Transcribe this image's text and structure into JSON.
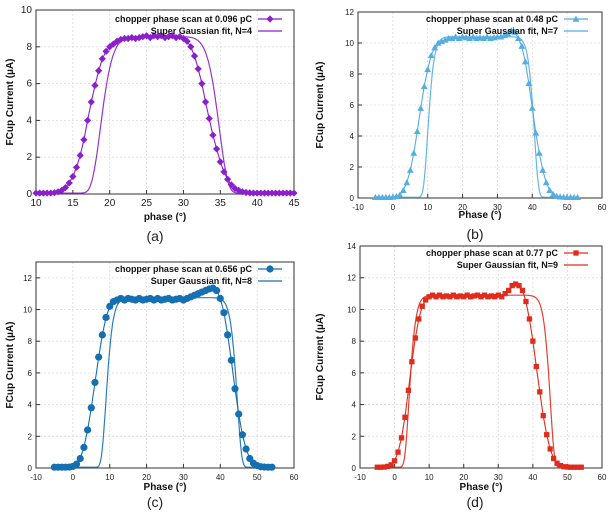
{
  "chart_data": [
    {
      "type": "scatter",
      "panel_label": "(a)",
      "color": "#8B1FCB",
      "marker": "diamond",
      "xlabel": "phase (°)",
      "ylabel": "FCup Current (µA)",
      "xlim": [
        10,
        45
      ],
      "ylim": [
        0,
        10
      ],
      "xticks": [
        10,
        15,
        20,
        25,
        30,
        35,
        40,
        45
      ],
      "yticks": [
        0,
        2,
        4,
        6,
        8,
        10
      ],
      "grid": true,
      "legend_position": "top-right",
      "series": [
        {
          "name": "chopper phase scan at 0.096 pC",
          "style": "markers",
          "x": [
            10,
            10.5,
            11,
            11.5,
            12,
            12.5,
            13,
            13.5,
            14,
            14.5,
            15,
            15.5,
            16,
            16.5,
            17,
            17.5,
            18,
            18.5,
            19,
            19.5,
            20,
            20.5,
            21,
            21.5,
            22,
            22.5,
            23,
            23.5,
            24,
            24.5,
            25,
            25.5,
            26,
            26.5,
            27,
            27.5,
            28,
            28.5,
            29,
            29.5,
            30,
            30.5,
            31,
            31.5,
            32,
            32.5,
            33,
            33.5,
            34,
            34.5,
            35,
            35.5,
            36,
            36.5,
            37,
            37.5,
            38,
            38.5,
            39,
            39.5,
            40,
            40.5,
            41,
            41.5,
            42,
            42.5,
            43,
            43.5,
            44,
            44.5,
            45
          ],
          "y": [
            0.05,
            0.05,
            0.05,
            0.05,
            0.05,
            0.07,
            0.12,
            0.2,
            0.35,
            0.6,
            0.95,
            1.45,
            2.1,
            2.95,
            4.0,
            5.0,
            5.9,
            6.7,
            7.35,
            7.75,
            8.0,
            8.15,
            8.3,
            8.4,
            8.45,
            8.45,
            8.5,
            8.45,
            8.5,
            8.55,
            8.6,
            8.5,
            8.6,
            8.55,
            8.6,
            8.5,
            8.55,
            8.6,
            8.5,
            8.55,
            8.45,
            8.3,
            8.0,
            7.5,
            6.8,
            6.0,
            5.0,
            4.1,
            3.2,
            2.45,
            1.75,
            1.2,
            0.8,
            0.5,
            0.3,
            0.2,
            0.12,
            0.08,
            0.06,
            0.05,
            0.05,
            0.05,
            0.05,
            0.05,
            0.05,
            0.05,
            0.05,
            0.05,
            0.05,
            0.05,
            0.05
          ]
        },
        {
          "name": "Super Gaussian fit, N=4",
          "style": "line",
          "fit": {
            "amplitude": 8.5,
            "center": 26.8,
            "width": 8.2,
            "order": 4,
            "baseline": 0.05
          }
        }
      ]
    },
    {
      "type": "scatter",
      "panel_label": "(b)",
      "color": "#55AEE2",
      "marker": "triangle",
      "xlabel": "Phase (°)",
      "ylabel": "FCup Current (µA)",
      "xlim": [
        -10,
        60
      ],
      "ylim": [
        0,
        12
      ],
      "xticks": [
        -10,
        0,
        10,
        20,
        30,
        40,
        50,
        60
      ],
      "yticks": [
        0,
        2,
        4,
        6,
        8,
        10,
        12
      ],
      "grid": true,
      "legend_position": "top-right",
      "series": [
        {
          "name": "chopper phase scan at 0.48 pC",
          "style": "markers",
          "x": [
            -5,
            -4,
            -3,
            -2,
            -1,
            0,
            1,
            2,
            3,
            4,
            5,
            6,
            7,
            8,
            9,
            10,
            11,
            12,
            13,
            14,
            15,
            16,
            17,
            18,
            19,
            20,
            21,
            22,
            23,
            24,
            25,
            26,
            27,
            28,
            29,
            30,
            31,
            32,
            33,
            34,
            35,
            36,
            37,
            38,
            39,
            40,
            41,
            42,
            43,
            44,
            45,
            46,
            47,
            48,
            49,
            50,
            51,
            52,
            53
          ],
          "y": [
            0.05,
            0.05,
            0.05,
            0.05,
            0.05,
            0.06,
            0.1,
            0.2,
            0.5,
            1.0,
            1.8,
            2.9,
            4.3,
            5.8,
            7.2,
            8.3,
            9.2,
            9.7,
            10.0,
            10.1,
            10.2,
            10.3,
            10.3,
            10.4,
            10.3,
            10.4,
            10.35,
            10.3,
            10.4,
            10.3,
            10.35,
            10.3,
            10.4,
            10.3,
            10.35,
            10.4,
            10.4,
            10.5,
            10.6,
            10.8,
            10.7,
            10.3,
            9.8,
            8.8,
            7.4,
            5.8,
            4.2,
            2.9,
            1.8,
            1.0,
            0.5,
            0.25,
            0.12,
            0.08,
            0.06,
            0.05,
            0.05,
            0.05,
            0.05
          ]
        },
        {
          "name": "Super Gaussian fit, N=7",
          "style": "line",
          "fit": {
            "amplitude": 10.35,
            "center": 25.3,
            "width": 15.4,
            "order": 7,
            "baseline": 0.05
          }
        }
      ]
    },
    {
      "type": "scatter",
      "panel_label": "(c)",
      "color": "#1470B2",
      "marker": "circle",
      "xlabel": "Phase (°)",
      "ylabel": "FCup Current (µA)",
      "xlim": [
        -10,
        60
      ],
      "ylim": [
        0,
        13
      ],
      "xticks": [
        -10,
        0,
        10,
        20,
        30,
        40,
        50,
        60
      ],
      "yticks": [
        0,
        2,
        4,
        6,
        8,
        10,
        12
      ],
      "grid": true,
      "legend_position": "top-right",
      "series": [
        {
          "name": "chopper phase scan at 0.656 pC",
          "style": "markers",
          "x": [
            -5,
            -4,
            -3,
            -2,
            -1,
            0,
            1,
            2,
            3,
            4,
            5,
            6,
            7,
            8,
            9,
            10,
            11,
            12,
            13,
            14,
            15,
            16,
            17,
            18,
            19,
            20,
            21,
            22,
            23,
            24,
            25,
            26,
            27,
            28,
            29,
            30,
            31,
            32,
            33,
            34,
            35,
            36,
            37,
            38,
            39,
            40,
            41,
            42,
            43,
            44,
            45,
            46,
            47,
            48,
            49,
            50,
            51,
            52,
            53,
            54
          ],
          "y": [
            0.05,
            0.05,
            0.05,
            0.05,
            0.06,
            0.1,
            0.25,
            0.6,
            1.3,
            2.4,
            3.8,
            5.4,
            7.0,
            8.4,
            9.5,
            10.2,
            10.5,
            10.6,
            10.7,
            10.6,
            10.7,
            10.65,
            10.6,
            10.7,
            10.6,
            10.65,
            10.7,
            10.6,
            10.7,
            10.6,
            10.65,
            10.7,
            10.6,
            10.65,
            10.7,
            10.6,
            10.7,
            10.8,
            10.9,
            11.0,
            11.1,
            11.2,
            11.3,
            11.35,
            11.2,
            10.7,
            9.8,
            8.4,
            6.8,
            5.0,
            3.4,
            2.1,
            1.2,
            0.6,
            0.3,
            0.15,
            0.08,
            0.06,
            0.05,
            0.05
          ]
        },
        {
          "name": "Super Gaussian fit, N=8",
          "style": "line",
          "fit": {
            "amplitude": 10.7,
            "center": 26.8,
            "width": 17.9,
            "order": 8,
            "baseline": 0.05
          }
        }
      ]
    },
    {
      "type": "scatter",
      "panel_label": "(d)",
      "color": "#E02B1D",
      "marker": "square",
      "xlabel": "Phase (°)",
      "ylabel": "FCup Current (µA)",
      "xlim": [
        -10,
        60
      ],
      "ylim": [
        0,
        14
      ],
      "xticks": [
        -10,
        0,
        10,
        20,
        30,
        40,
        50,
        60
      ],
      "yticks": [
        0,
        2,
        4,
        6,
        8,
        10,
        12,
        14
      ],
      "grid": true,
      "legend_position": "top-right",
      "series": [
        {
          "name": "chopper phase scan at 0.77 pC",
          "style": "markers",
          "x": [
            -5,
            -4,
            -3,
            -2,
            -1,
            0,
            1,
            2,
            3,
            4,
            5,
            6,
            7,
            8,
            9,
            10,
            11,
            12,
            13,
            14,
            15,
            16,
            17,
            18,
            19,
            20,
            21,
            22,
            23,
            24,
            25,
            26,
            27,
            28,
            29,
            30,
            31,
            32,
            33,
            34,
            35,
            36,
            37,
            38,
            39,
            40,
            41,
            42,
            43,
            44,
            45,
            46,
            47,
            48,
            49,
            50,
            51,
            52,
            53,
            54
          ],
          "y": [
            0.05,
            0.05,
            0.06,
            0.1,
            0.2,
            0.45,
            1.0,
            1.9,
            3.2,
            4.9,
            6.7,
            8.2,
            9.4,
            10.2,
            10.6,
            10.8,
            10.9,
            10.8,
            10.9,
            10.8,
            10.85,
            10.8,
            10.9,
            10.8,
            10.85,
            10.8,
            10.9,
            10.8,
            10.85,
            10.9,
            10.8,
            10.9,
            10.8,
            10.85,
            10.8,
            10.9,
            10.8,
            11.0,
            11.2,
            11.5,
            11.6,
            11.5,
            11.2,
            10.5,
            9.4,
            8.0,
            6.4,
            4.8,
            3.3,
            2.1,
            1.2,
            0.6,
            0.3,
            0.15,
            0.08,
            0.06,
            0.05,
            0.05,
            0.05,
            0.05
          ]
        },
        {
          "name": "Super Gaussian fit, N=9",
          "style": "line",
          "fit": {
            "amplitude": 10.85,
            "center": 24.6,
            "width": 20.5,
            "order": 9,
            "baseline": 0.05
          }
        }
      ]
    }
  ]
}
